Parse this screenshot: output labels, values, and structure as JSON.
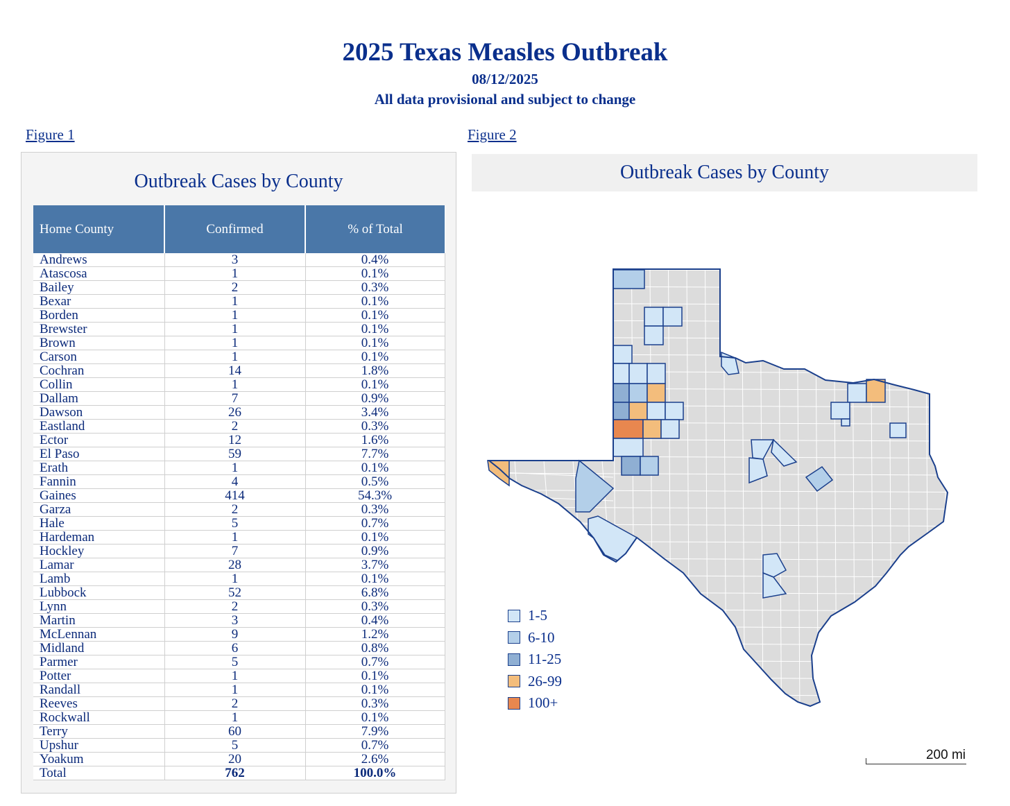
{
  "header": {
    "title": "2025 Texas Measles Outbreak",
    "date": "08/12/2025",
    "note": "All data provisional and subject to change"
  },
  "figure1": {
    "link": "Figure 1",
    "title": "Outbreak Cases by County",
    "columns": [
      "Home County",
      "Confirmed",
      "% of Total"
    ],
    "rows": [
      {
        "county": "Andrews",
        "confirmed": "3",
        "pct": "0.4%"
      },
      {
        "county": "Atascosa",
        "confirmed": "1",
        "pct": "0.1%"
      },
      {
        "county": "Bailey",
        "confirmed": "2",
        "pct": "0.3%"
      },
      {
        "county": "Bexar",
        "confirmed": "1",
        "pct": "0.1%"
      },
      {
        "county": "Borden",
        "confirmed": "1",
        "pct": "0.1%"
      },
      {
        "county": "Brewster",
        "confirmed": "1",
        "pct": "0.1%"
      },
      {
        "county": "Brown",
        "confirmed": "1",
        "pct": "0.1%"
      },
      {
        "county": "Carson",
        "confirmed": "1",
        "pct": "0.1%"
      },
      {
        "county": "Cochran",
        "confirmed": "14",
        "pct": "1.8%"
      },
      {
        "county": "Collin",
        "confirmed": "1",
        "pct": "0.1%"
      },
      {
        "county": "Dallam",
        "confirmed": "7",
        "pct": "0.9%"
      },
      {
        "county": "Dawson",
        "confirmed": "26",
        "pct": "3.4%"
      },
      {
        "county": "Eastland",
        "confirmed": "2",
        "pct": "0.3%"
      },
      {
        "county": "Ector",
        "confirmed": "12",
        "pct": "1.6%"
      },
      {
        "county": "El Paso",
        "confirmed": "59",
        "pct": "7.7%"
      },
      {
        "county": "Erath",
        "confirmed": "1",
        "pct": "0.1%"
      },
      {
        "county": "Fannin",
        "confirmed": "4",
        "pct": "0.5%"
      },
      {
        "county": "Gaines",
        "confirmed": "414",
        "pct": "54.3%"
      },
      {
        "county": "Garza",
        "confirmed": "2",
        "pct": "0.3%"
      },
      {
        "county": "Hale",
        "confirmed": "5",
        "pct": "0.7%"
      },
      {
        "county": "Hardeman",
        "confirmed": "1",
        "pct": "0.1%"
      },
      {
        "county": "Hockley",
        "confirmed": "7",
        "pct": "0.9%"
      },
      {
        "county": "Lamar",
        "confirmed": "28",
        "pct": "3.7%"
      },
      {
        "county": "Lamb",
        "confirmed": "1",
        "pct": "0.1%"
      },
      {
        "county": "Lubbock",
        "confirmed": "52",
        "pct": "6.8%"
      },
      {
        "county": "Lynn",
        "confirmed": "2",
        "pct": "0.3%"
      },
      {
        "county": "Martin",
        "confirmed": "3",
        "pct": "0.4%"
      },
      {
        "county": "McLennan",
        "confirmed": "9",
        "pct": "1.2%"
      },
      {
        "county": "Midland",
        "confirmed": "6",
        "pct": "0.8%"
      },
      {
        "county": "Parmer",
        "confirmed": "5",
        "pct": "0.7%"
      },
      {
        "county": "Potter",
        "confirmed": "1",
        "pct": "0.1%"
      },
      {
        "county": "Randall",
        "confirmed": "1",
        "pct": "0.1%"
      },
      {
        "county": "Reeves",
        "confirmed": "2",
        "pct": "0.3%"
      },
      {
        "county": "Rockwall",
        "confirmed": "1",
        "pct": "0.1%"
      },
      {
        "county": "Terry",
        "confirmed": "60",
        "pct": "7.9%"
      },
      {
        "county": "Upshur",
        "confirmed": "5",
        "pct": "0.7%"
      },
      {
        "county": "Yoakum",
        "confirmed": "20",
        "pct": "2.6%"
      }
    ],
    "total": {
      "county": "Total",
      "confirmed": "762",
      "pct": "100.0%"
    }
  },
  "figure2": {
    "link": "Figure 2",
    "title": "Outbreak Cases by County",
    "legend": [
      {
        "label": "1-5",
        "color": "#d2e6f7"
      },
      {
        "label": "6-10",
        "color": "#b3cfe9"
      },
      {
        "label": "11-25",
        "color": "#8fafd3"
      },
      {
        "label": "26-99",
        "color": "#f3bd7c"
      },
      {
        "label": "100+",
        "color": "#e8874f"
      }
    ],
    "scale_label": "200 mi",
    "colors": {
      "base": "#dcdcdc",
      "outline": "#1a3f8c",
      "county_line": "#ffffff"
    }
  }
}
